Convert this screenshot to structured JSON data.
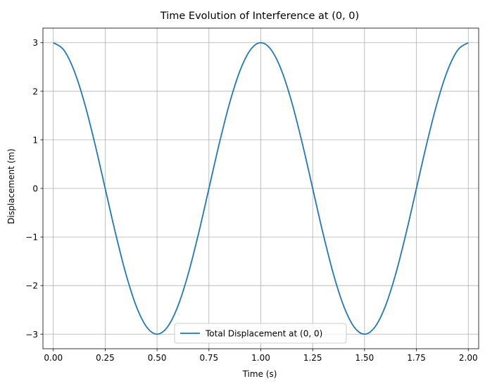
{
  "chart_data": {
    "type": "line",
    "title": "Time Evolution of Interference at (0, 0)",
    "xlabel": "Time (s)",
    "ylabel": "Displacement (m)",
    "xlim": [
      -0.05,
      2.05
    ],
    "ylim": [
      -3.3,
      3.3
    ],
    "x_ticks": [
      0.0,
      0.25,
      0.5,
      0.75,
      1.0,
      1.25,
      1.5,
      1.75,
      2.0
    ],
    "x_tick_labels": [
      "0.00",
      "0.25",
      "0.50",
      "0.75",
      "1.00",
      "1.25",
      "1.50",
      "1.75",
      "2.00"
    ],
    "y_ticks": [
      -3,
      -2,
      -1,
      0,
      1,
      2,
      3
    ],
    "y_tick_labels": [
      "−3",
      "−2",
      "−1",
      "0",
      "1",
      "2",
      "3"
    ],
    "grid": true,
    "legend_position": "lower center",
    "series": [
      {
        "name": "Total Displacement at (0, 0)",
        "color": "#1f77b4",
        "x": [
          0.0,
          0.05,
          0.1,
          0.15,
          0.2,
          0.25,
          0.3,
          0.35,
          0.4,
          0.45,
          0.5,
          0.55,
          0.6,
          0.65,
          0.7,
          0.75,
          0.8,
          0.85,
          0.9,
          0.95,
          1.0,
          1.05,
          1.1,
          1.15,
          1.2,
          1.25,
          1.3,
          1.35,
          1.4,
          1.45,
          1.5,
          1.55,
          1.6,
          1.65,
          1.7,
          1.75,
          1.8,
          1.85,
          1.9,
          1.95,
          2.0
        ],
        "y": [
          3.0,
          2.853,
          2.427,
          1.763,
          0.927,
          0.0,
          -0.927,
          -1.763,
          -2.427,
          -2.853,
          -3.0,
          -2.853,
          -2.427,
          -1.763,
          -0.927,
          0.0,
          0.927,
          1.763,
          2.427,
          2.853,
          3.0,
          2.853,
          2.427,
          1.763,
          0.927,
          0.0,
          -0.927,
          -1.763,
          -2.427,
          -2.853,
          -3.0,
          -2.853,
          -2.427,
          -1.763,
          -0.927,
          0.0,
          0.927,
          1.763,
          2.427,
          2.853,
          3.0
        ]
      }
    ]
  }
}
